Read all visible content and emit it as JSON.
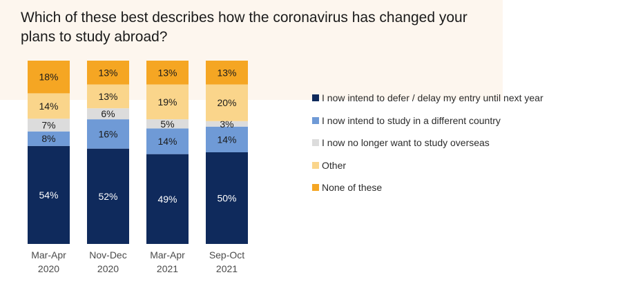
{
  "page": {
    "title": "Which of these best describes how the coronavirus has changed your plans to study abroad?"
  },
  "chart_data": {
    "type": "bar",
    "stacked": true,
    "title": "Which of these best describes how the coronavirus has changed your plans to study abroad?",
    "xlabel": "",
    "ylabel": "",
    "ylim": [
      0,
      100
    ],
    "grid": false,
    "legend_position": "right",
    "categories": [
      "Mar-Apr 2020",
      "Nov-Dec 2020",
      "Mar-Apr 2021",
      "Sep-Oct 2021"
    ],
    "category_lines": [
      [
        "Mar-Apr",
        "2020"
      ],
      [
        "Nov-Dec",
        "2020"
      ],
      [
        "Mar-Apr",
        "2021"
      ],
      [
        "Sep-Oct",
        "2021"
      ]
    ],
    "series": [
      {
        "name": "I now intend to defer / delay my entry until next year",
        "color": "#0f2a5c",
        "label_color": "#ffffff",
        "values": [
          54,
          52,
          49,
          50
        ],
        "labels": [
          "54%",
          "52%",
          "49%",
          "50%"
        ]
      },
      {
        "name": "I now intend to study in a different country",
        "color": "#6f9ad6",
        "label_color": "#1a1a1a",
        "values": [
          8,
          16,
          14,
          14
        ],
        "labels": [
          "8%",
          "16%",
          "14%",
          "14%"
        ]
      },
      {
        "name": "I now no longer want to study overseas",
        "color": "#dcdcdc",
        "label_color": "#1a1a1a",
        "values": [
          7,
          6,
          5,
          3
        ],
        "labels": [
          "7%",
          "6%",
          "5%",
          "3%"
        ]
      },
      {
        "name": "Other",
        "color": "#fad58b",
        "label_color": "#1a1a1a",
        "values": [
          14,
          13,
          19,
          20
        ],
        "labels": [
          "14%",
          "13%",
          "19%",
          "20%"
        ]
      },
      {
        "name": "None of these",
        "color": "#f5a623",
        "label_color": "#1a1a1a",
        "values": [
          18,
          13,
          13,
          13
        ],
        "labels": [
          "18%",
          "13%",
          "13%",
          "13%"
        ]
      }
    ]
  }
}
